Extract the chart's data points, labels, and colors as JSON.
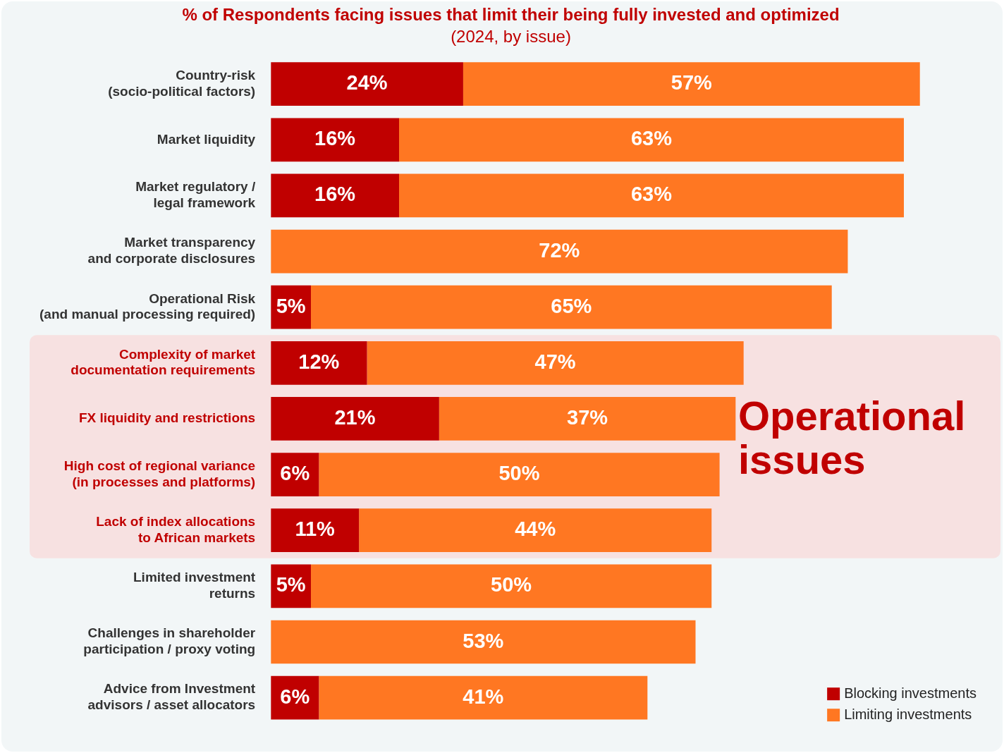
{
  "chart_data": {
    "type": "bar",
    "orientation": "horizontal",
    "stacked": true,
    "title": "% of Respondents facing issues that limit their being fully invested and optimized",
    "subtitle": "(2024, by issue)",
    "categories": [
      "Country-risk\n(socio-political factors)",
      "Market liquidity",
      "Market regulatory /\nlegal framework",
      "Market transparency\nand corporate disclosures",
      "Operational Risk\n(and manual processing required)",
      "Complexity of market\ndocumentation requirements",
      "FX liquidity and restrictions",
      "High cost of regional variance\n(in processes and platforms)",
      "Lack of index allocations\nto African markets",
      "Limited investment\nreturns",
      "Challenges in shareholder\nparticipation / proxy voting",
      "Advice from Investment\nadvisors / asset allocators"
    ],
    "series": [
      {
        "name": "Blocking investments",
        "color": "#c00000",
        "values": [
          24,
          16,
          16,
          null,
          5,
          12,
          21,
          6,
          11,
          5,
          null,
          6
        ],
        "value_labels": [
          "24%",
          "16%",
          "16%",
          null,
          "5%",
          "12%",
          "21%",
          "6%",
          "11%",
          "5%",
          null,
          "6%"
        ]
      },
      {
        "name": "Limiting investments",
        "color": "#ff7722",
        "values": [
          57,
          63,
          63,
          72,
          65,
          47,
          37,
          50,
          44,
          50,
          53,
          41
        ],
        "value_labels": [
          "57%",
          "63%",
          "63%",
          "72%",
          "65%",
          "47%",
          "37%",
          "50%",
          "44%",
          "50%",
          "53%",
          "41%"
        ]
      }
    ],
    "tick_labels": "y",
    "legend": "bottom right",
    "bands": [
      {
        "axis": "y",
        "from": "Complexity of market\ndocumentation requirements",
        "to": "Lack of index allocations\nto African markets",
        "label": "Operational issues",
        "color": "#f7e1e1"
      }
    ]
  }
}
